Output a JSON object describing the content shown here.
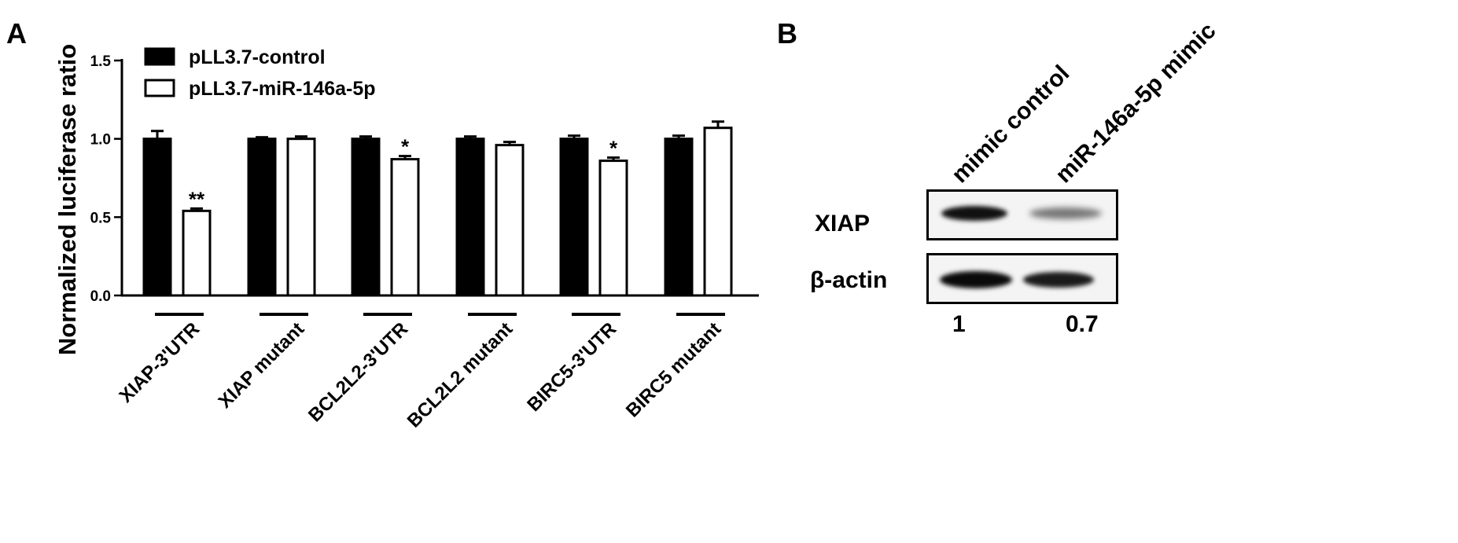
{
  "panels": {
    "a": "A",
    "b": "B"
  },
  "chart_data": {
    "type": "bar",
    "title": "",
    "ylabel": "Normalized luciferase ratio",
    "xlabel": "",
    "ylim": [
      0,
      1.5
    ],
    "yticks": [
      "0.0",
      "0.5",
      "1.0",
      "1.5"
    ],
    "legend_position": "top-left",
    "categories": [
      "XIAP-3'UTR",
      "XIAP mutant",
      "BCL2L2-3'UTR",
      "BCL2L2 mutant",
      "BIRC5-3'UTR",
      "BIRC5 mutant"
    ],
    "series": [
      {
        "name": "pLL3.7-control",
        "fill": "#000000",
        "values": [
          1.0,
          1.0,
          1.0,
          1.0,
          1.0,
          1.0
        ],
        "errors": [
          0.05,
          0.01,
          0.015,
          0.015,
          0.02,
          0.02
        ]
      },
      {
        "name": "pLL3.7-miR-146a-5p",
        "fill": "#ffffff",
        "values": [
          0.54,
          1.0,
          0.87,
          0.96,
          0.86,
          1.07
        ],
        "errors": [
          0.015,
          0.015,
          0.02,
          0.02,
          0.02,
          0.04
        ]
      }
    ],
    "significance": [
      "**",
      "",
      "*",
      "",
      "*",
      ""
    ]
  },
  "blot": {
    "lanes": [
      "mimic control",
      "miR-146a-5p mimic"
    ],
    "rows": [
      {
        "label": "XIAP",
        "intensity": [
          1.0,
          0.35
        ]
      },
      {
        "label": "β-actin",
        "intensity": [
          1.0,
          0.9
        ]
      }
    ],
    "quantification": [
      "1",
      "0.7"
    ]
  }
}
